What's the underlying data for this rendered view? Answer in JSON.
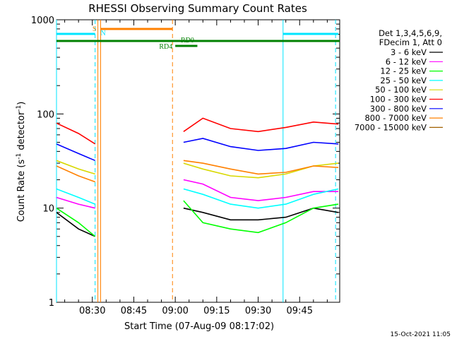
{
  "chart_data": {
    "type": "line",
    "title": "RHESSI Observing Summary Count Rates",
    "xlabel": "Start Time (07-Aug-09 08:17:02)",
    "ylabel": "Count Rate (s",
    "ylabel_sup1": "-1",
    "ylabel_mid": " detector",
    "ylabel_sup2": "-1",
    "ylabel_end": ")",
    "y_scale": "log",
    "ylim": [
      1,
      1000
    ],
    "x_range": [
      "08:17:02",
      "09:59:30"
    ],
    "x_ticks": [
      "08:30",
      "08:45",
      "09:00",
      "09:15",
      "09:30",
      "09:45"
    ],
    "y_ticks": [
      "1",
      "10",
      "100",
      "1000"
    ],
    "timestamp": "15-Oct-2021 11:05",
    "legend_header": [
      "Det 1,3,4,5,6,9,",
      "FDecim 1, Att 0"
    ],
    "annotations": {
      "s_flag": "S",
      "n_flag": "N",
      "rd0": "RD0",
      "rd4": "RD4"
    },
    "series": [
      {
        "name": "3 - 6 keV",
        "color": "#000000",
        "x": [
          "08:17",
          "08:25",
          "08:31",
          "09:03",
          "09:10",
          "09:20",
          "09:30",
          "09:40",
          "09:50",
          "09:59"
        ],
        "values": [
          9,
          6,
          5,
          10,
          9,
          7.5,
          7.5,
          8,
          10,
          9
        ]
      },
      {
        "name": "6 - 12 keV",
        "color": "#ff00ff",
        "x": [
          "08:17",
          "08:25",
          "08:31",
          "09:03",
          "09:10",
          "09:20",
          "09:30",
          "09:40",
          "09:50",
          "09:59"
        ],
        "values": [
          13,
          11,
          10,
          20,
          18,
          13,
          12,
          13,
          15,
          15
        ]
      },
      {
        "name": "12 - 25 keV",
        "color": "#00ff00",
        "x": [
          "08:17",
          "08:25",
          "08:31",
          "09:03",
          "09:10",
          "09:20",
          "09:30",
          "09:40",
          "09:50",
          "09:59"
        ],
        "values": [
          10,
          7,
          5,
          12,
          7,
          6,
          5.5,
          7,
          10,
          11
        ]
      },
      {
        "name": "25 - 50 keV",
        "color": "#00ffff",
        "x": [
          "08:17",
          "08:25",
          "08:31",
          "09:03",
          "09:10",
          "09:20",
          "09:30",
          "09:40",
          "09:50",
          "09:59"
        ],
        "values": [
          16,
          13,
          11,
          16,
          14,
          11,
          10,
          11,
          14,
          16
        ]
      },
      {
        "name": "50 - 100 keV",
        "color": "#d8d800",
        "x": [
          "08:17",
          "08:25",
          "08:31",
          "09:03",
          "09:10",
          "09:20",
          "09:30",
          "09:40",
          "09:50",
          "09:59"
        ],
        "values": [
          32,
          26,
          23,
          30,
          26,
          22,
          21,
          23,
          28,
          30
        ]
      },
      {
        "name": "100 - 300 keV",
        "color": "#ff0000",
        "x": [
          "08:17",
          "08:25",
          "08:31",
          "09:03",
          "09:10",
          "09:20",
          "09:30",
          "09:40",
          "09:50",
          "09:59"
        ],
        "values": [
          80,
          62,
          48,
          65,
          90,
          70,
          65,
          72,
          82,
          78
        ]
      },
      {
        "name": "300 - 800 keV",
        "color": "#0000ff",
        "x": [
          "08:17",
          "08:25",
          "08:31",
          "09:03",
          "09:10",
          "09:20",
          "09:30",
          "09:40",
          "09:50",
          "09:59"
        ],
        "values": [
          48,
          38,
          32,
          50,
          55,
          45,
          41,
          43,
          50,
          48
        ]
      },
      {
        "name": "800 - 7000 keV",
        "color": "#ff8000",
        "x": [
          "08:17",
          "08:25",
          "08:31",
          "09:03",
          "09:10",
          "09:20",
          "09:30",
          "09:40",
          "09:50",
          "09:59"
        ],
        "values": [
          28,
          22,
          19,
          32,
          30,
          26,
          23,
          24,
          28,
          27
        ]
      },
      {
        "name": "7000 - 15000 keV",
        "color": "#a06000",
        "x": [],
        "values": []
      }
    ]
  }
}
